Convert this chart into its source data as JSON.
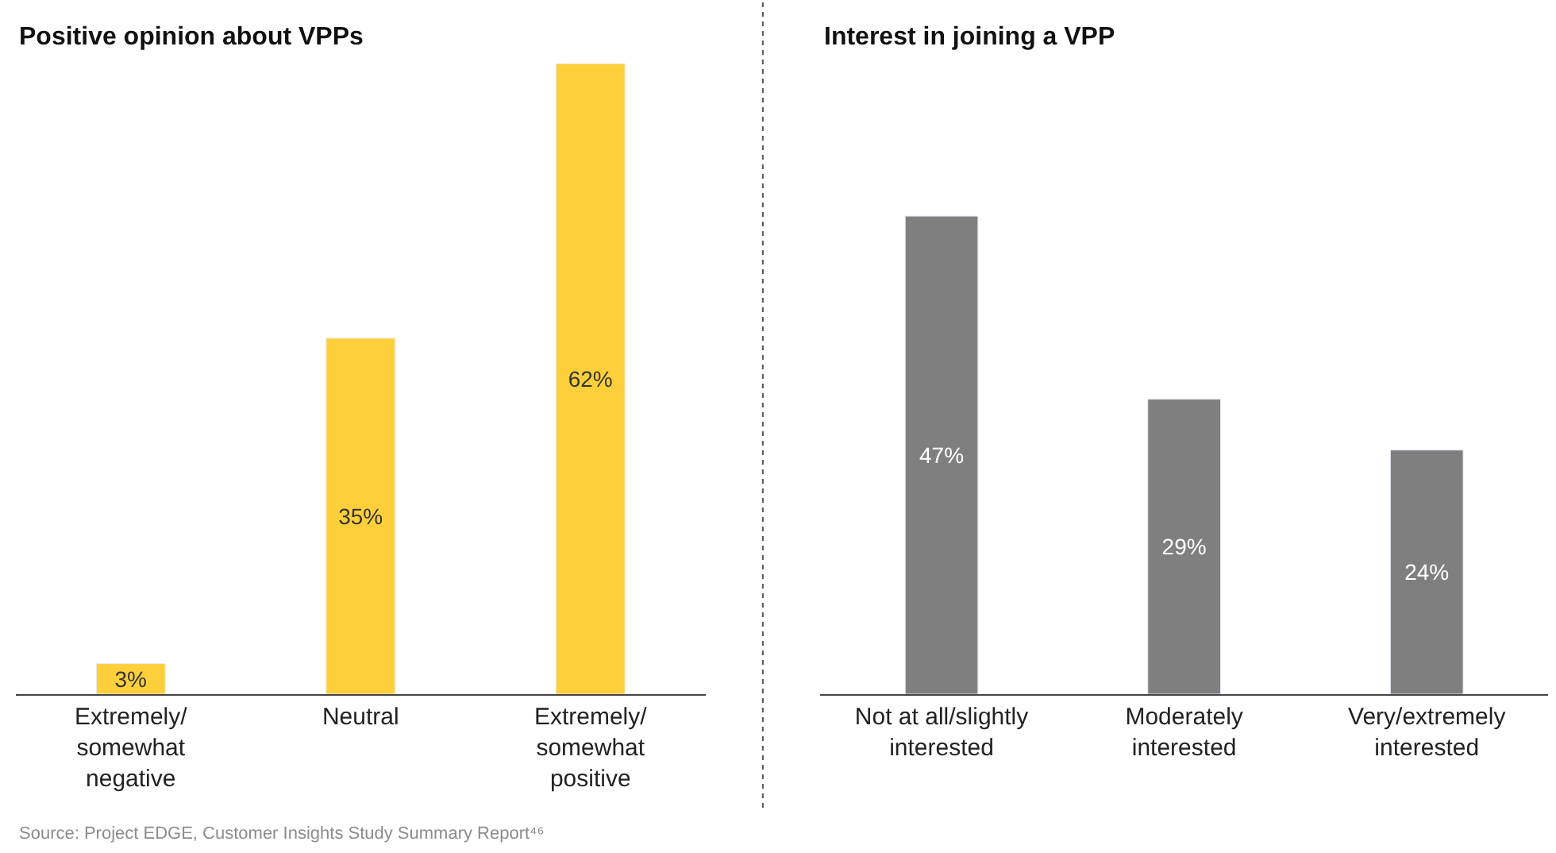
{
  "chart_data": [
    {
      "type": "bar",
      "title": "Positive opinion about VPPs",
      "categories": [
        "Extremely/ somewhat negative",
        "Neutral",
        "Extremely/ somewhat positive"
      ],
      "values": [
        3,
        35,
        62
      ],
      "value_labels": [
        "3%",
        "35%",
        "62%"
      ],
      "color": "#fdd03b",
      "annotations": [
        "Source: Project EDGE, Customer Insights Study Summary Report⁴⁶"
      ]
    },
    {
      "type": "bar",
      "title": "Interest in joining a VPP",
      "categories": [
        "Not at all/slightly interested",
        "Moderately interested",
        "Very/extremely interested"
      ],
      "values": [
        47,
        29,
        24
      ],
      "value_labels": [
        "47%",
        "29%",
        "24%"
      ],
      "color": "#7f7f7f"
    }
  ]
}
